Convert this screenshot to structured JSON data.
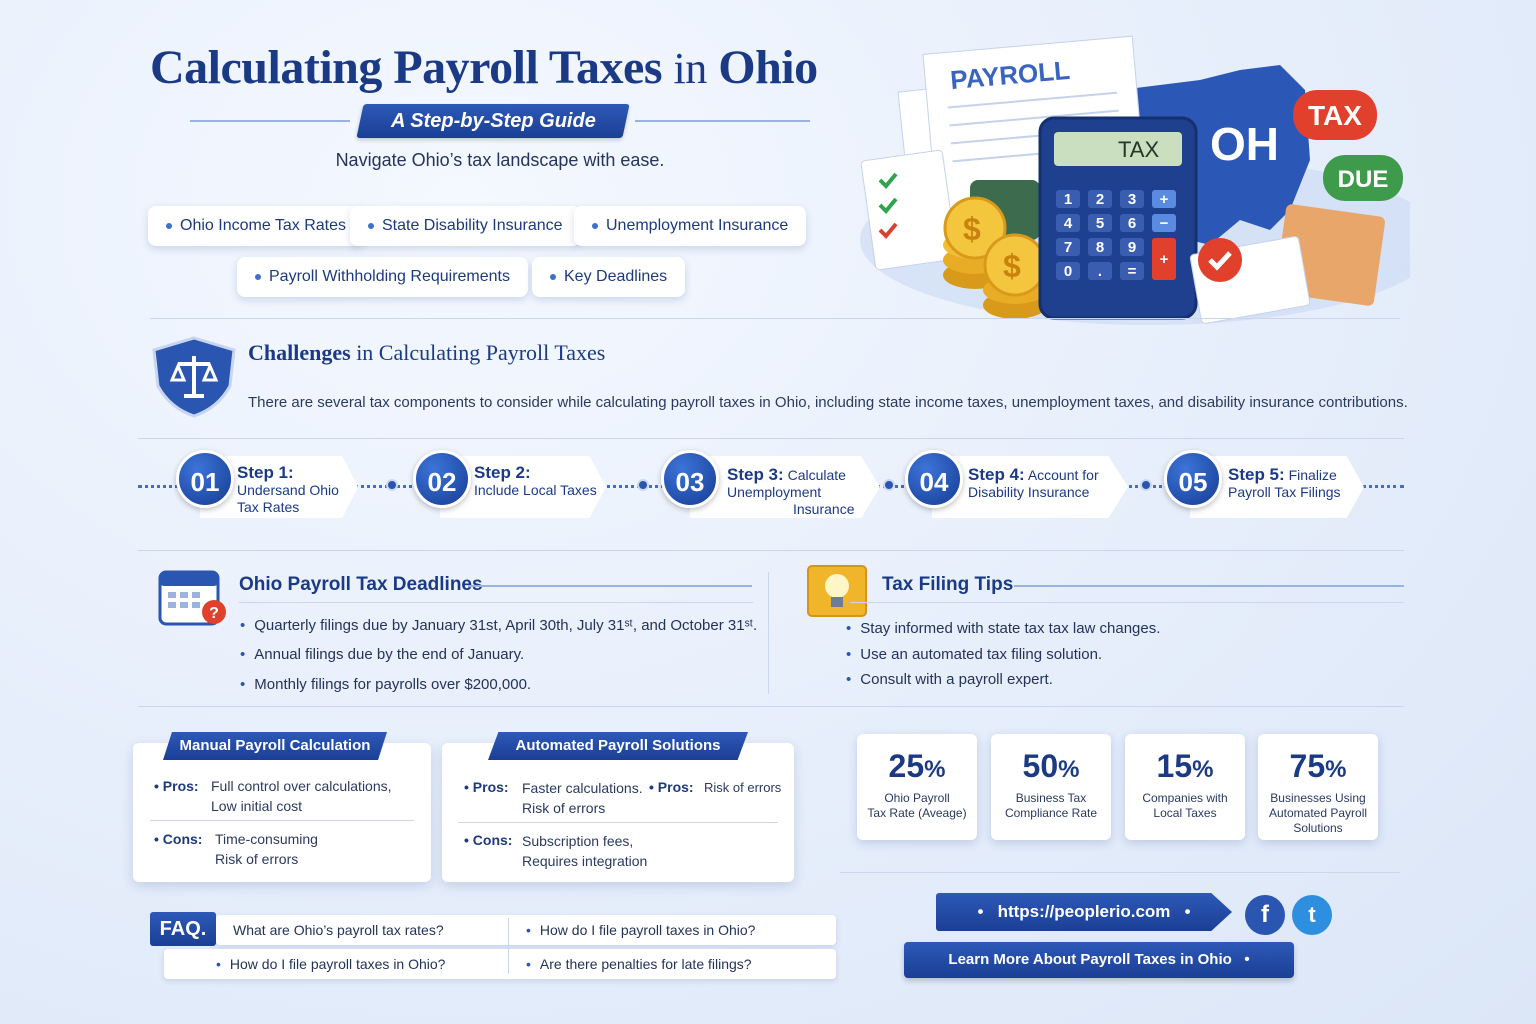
{
  "header": {
    "title_main": "Calculating Payroll Taxes",
    "title_in": "in",
    "title_state": "Ohio",
    "subtitle": "A Step-by-Step Guide",
    "tagline": "Navigate Ohio’s tax landscape with ease."
  },
  "topics": [
    "Ohio Income Tax Rates",
    "State Disability Insurance",
    "Unemployment Insurance",
    "Payroll Withholding Requirements",
    "Key Deadlines"
  ],
  "hero": {
    "payroll_label": "PAYROLL",
    "calc_screen": "TAX",
    "state_label": "OH",
    "tax_bubble": "TAX",
    "due_bubble": "DUE",
    "keys": [
      "1",
      "2",
      "3",
      "+",
      "4",
      "5",
      "6",
      "−",
      "7",
      "8",
      "9",
      "+",
      "0",
      ".",
      "="
    ]
  },
  "challenges": {
    "title_bold": "Challenges",
    "title_rest": "in Calculating Payroll Taxes",
    "text": "There are several tax components to consider while calculating payroll taxes in Ohio, including state income taxes, unemployment taxes, and disability insurance contributions."
  },
  "steps": [
    {
      "num": "01",
      "head": "Step 1:",
      "l1": "Undersand Ohio",
      "l2": "Tax Rates"
    },
    {
      "num": "02",
      "head": "Step 2:",
      "l1": "Include Local Taxes",
      "l2": ""
    },
    {
      "num": "03",
      "head": "Step 3:",
      "head_rest": "Calculate",
      "l1": "Unemployment",
      "l2": "Insurance"
    },
    {
      "num": "04",
      "head": "Step 4:",
      "head_rest": "Account for",
      "l1": "Disability Insurance",
      "l2": ""
    },
    {
      "num": "05",
      "head": "Step 5:",
      "head_rest": "Finalize",
      "l1": "Payroll Tax Filings",
      "l2": ""
    }
  ],
  "deadlines": {
    "title": "Ohio Payroll Tax Deadlines",
    "items": [
      "Quarterly filings due by January 31st, April 30th, July 31ˢᵗ, and October 31ˢᵗ.",
      "Annual filings due by the end of January.",
      "Monthly filings for payrolls over $200,000."
    ]
  },
  "tips": {
    "title": "Tax Filing Tips",
    "items": [
      "Stay informed with state tax tax law changes.",
      "Use an automated tax filing solution.",
      "Consult with a payroll expert."
    ]
  },
  "manual": {
    "title": "Manual Payroll Calculation",
    "pros_label": "Pros:",
    "pros": [
      "Full control over calculations,",
      "Low initial cost"
    ],
    "cons_label": "Cons:",
    "cons": [
      "Time-consuming",
      "Risk of errors"
    ]
  },
  "automated": {
    "title": "Automated Payroll Solutions",
    "pros_label": "Pros:",
    "pros": [
      "Faster calculations.",
      "Risk of errors"
    ],
    "pros2_label": "Pros:",
    "pros2": "Risk of errors",
    "cons_label": "Cons:",
    "cons": [
      "Subscription fees,",
      "Requires integration"
    ]
  },
  "stats": [
    {
      "num": "25",
      "unit": "%",
      "l1": "Ohio Payroll",
      "l2": "Tax Rate (Aveage)",
      "l3": ""
    },
    {
      "num": "50",
      "unit": "%",
      "l1": "Business Tax",
      "l2": "Compliance Rate",
      "l3": ""
    },
    {
      "num": "15",
      "unit": "%",
      "l1": "Companies with",
      "l2": "Local Taxes",
      "l3": ""
    },
    {
      "num": "75",
      "unit": "%",
      "l1": "Businesses Using",
      "l2": "Automated Payroll",
      "l3": "Solutions"
    }
  ],
  "faq": {
    "badge": "FAQ.",
    "q1": "What are Ohio’s payroll tax rates?",
    "q2": "How do I file payroll taxes in Ohio?",
    "q3": "How do I file payroll taxes in Ohio?",
    "q4": "Are there penalties for late filings?"
  },
  "footer": {
    "url": "https://peoplerio.com",
    "facebook": "f",
    "twitter": "t",
    "cta": "Learn More About Payroll Taxes in Ohio"
  },
  "colors": {
    "primary": "#1b3a86",
    "accent": "#2d59b8",
    "tax_red": "#e0402c",
    "due_green": "#3f9b4c"
  }
}
